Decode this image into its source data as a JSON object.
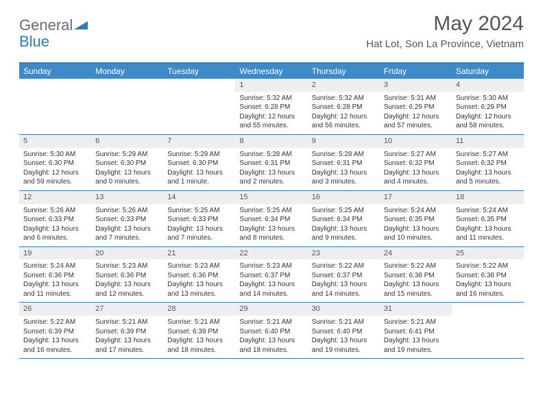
{
  "logo": {
    "text1": "General",
    "text2": "Blue",
    "accent": "#2b7bbd"
  },
  "title": "May 2024",
  "location": "Hat Lot, Son La Province, Vietnam",
  "colors": {
    "header_bar": "#3e8ac9",
    "border": "#2b7bbd",
    "daynum_bg": "#eeeeee",
    "text": "#333333"
  },
  "weekdays": [
    "Sunday",
    "Monday",
    "Tuesday",
    "Wednesday",
    "Thursday",
    "Friday",
    "Saturday"
  ],
  "weeks": [
    [
      {
        "empty": true
      },
      {
        "empty": true
      },
      {
        "empty": true
      },
      {
        "day": "1",
        "sunrise": "Sunrise: 5:32 AM",
        "sunset": "Sunset: 6:28 PM",
        "daylight": "Daylight: 12 hours and 55 minutes."
      },
      {
        "day": "2",
        "sunrise": "Sunrise: 5:32 AM",
        "sunset": "Sunset: 6:28 PM",
        "daylight": "Daylight: 12 hours and 56 minutes."
      },
      {
        "day": "3",
        "sunrise": "Sunrise: 5:31 AM",
        "sunset": "Sunset: 6:29 PM",
        "daylight": "Daylight: 12 hours and 57 minutes."
      },
      {
        "day": "4",
        "sunrise": "Sunrise: 5:30 AM",
        "sunset": "Sunset: 6:29 PM",
        "daylight": "Daylight: 12 hours and 58 minutes."
      }
    ],
    [
      {
        "day": "5",
        "sunrise": "Sunrise: 5:30 AM",
        "sunset": "Sunset: 6:30 PM",
        "daylight": "Daylight: 12 hours and 59 minutes."
      },
      {
        "day": "6",
        "sunrise": "Sunrise: 5:29 AM",
        "sunset": "Sunset: 6:30 PM",
        "daylight": "Daylight: 13 hours and 0 minutes."
      },
      {
        "day": "7",
        "sunrise": "Sunrise: 5:29 AM",
        "sunset": "Sunset: 6:30 PM",
        "daylight": "Daylight: 13 hours and 1 minute."
      },
      {
        "day": "8",
        "sunrise": "Sunrise: 5:28 AM",
        "sunset": "Sunset: 6:31 PM",
        "daylight": "Daylight: 13 hours and 2 minutes."
      },
      {
        "day": "9",
        "sunrise": "Sunrise: 5:28 AM",
        "sunset": "Sunset: 6:31 PM",
        "daylight": "Daylight: 13 hours and 3 minutes."
      },
      {
        "day": "10",
        "sunrise": "Sunrise: 5:27 AM",
        "sunset": "Sunset: 6:32 PM",
        "daylight": "Daylight: 13 hours and 4 minutes."
      },
      {
        "day": "11",
        "sunrise": "Sunrise: 5:27 AM",
        "sunset": "Sunset: 6:32 PM",
        "daylight": "Daylight: 13 hours and 5 minutes."
      }
    ],
    [
      {
        "day": "12",
        "sunrise": "Sunrise: 5:26 AM",
        "sunset": "Sunset: 6:33 PM",
        "daylight": "Daylight: 13 hours and 6 minutes."
      },
      {
        "day": "13",
        "sunrise": "Sunrise: 5:26 AM",
        "sunset": "Sunset: 6:33 PM",
        "daylight": "Daylight: 13 hours and 7 minutes."
      },
      {
        "day": "14",
        "sunrise": "Sunrise: 5:25 AM",
        "sunset": "Sunset: 6:33 PM",
        "daylight": "Daylight: 13 hours and 7 minutes."
      },
      {
        "day": "15",
        "sunrise": "Sunrise: 5:25 AM",
        "sunset": "Sunset: 6:34 PM",
        "daylight": "Daylight: 13 hours and 8 minutes."
      },
      {
        "day": "16",
        "sunrise": "Sunrise: 5:25 AM",
        "sunset": "Sunset: 6:34 PM",
        "daylight": "Daylight: 13 hours and 9 minutes."
      },
      {
        "day": "17",
        "sunrise": "Sunrise: 5:24 AM",
        "sunset": "Sunset: 6:35 PM",
        "daylight": "Daylight: 13 hours and 10 minutes."
      },
      {
        "day": "18",
        "sunrise": "Sunrise: 5:24 AM",
        "sunset": "Sunset: 6:35 PM",
        "daylight": "Daylight: 13 hours and 11 minutes."
      }
    ],
    [
      {
        "day": "19",
        "sunrise": "Sunrise: 5:24 AM",
        "sunset": "Sunset: 6:36 PM",
        "daylight": "Daylight: 13 hours and 11 minutes."
      },
      {
        "day": "20",
        "sunrise": "Sunrise: 5:23 AM",
        "sunset": "Sunset: 6:36 PM",
        "daylight": "Daylight: 13 hours and 12 minutes."
      },
      {
        "day": "21",
        "sunrise": "Sunrise: 5:23 AM",
        "sunset": "Sunset: 6:36 PM",
        "daylight": "Daylight: 13 hours and 13 minutes."
      },
      {
        "day": "22",
        "sunrise": "Sunrise: 5:23 AM",
        "sunset": "Sunset: 6:37 PM",
        "daylight": "Daylight: 13 hours and 14 minutes."
      },
      {
        "day": "23",
        "sunrise": "Sunrise: 5:22 AM",
        "sunset": "Sunset: 6:37 PM",
        "daylight": "Daylight: 13 hours and 14 minutes."
      },
      {
        "day": "24",
        "sunrise": "Sunrise: 5:22 AM",
        "sunset": "Sunset: 6:38 PM",
        "daylight": "Daylight: 13 hours and 15 minutes."
      },
      {
        "day": "25",
        "sunrise": "Sunrise: 5:22 AM",
        "sunset": "Sunset: 6:38 PM",
        "daylight": "Daylight: 13 hours and 16 minutes."
      }
    ],
    [
      {
        "day": "26",
        "sunrise": "Sunrise: 5:22 AM",
        "sunset": "Sunset: 6:39 PM",
        "daylight": "Daylight: 13 hours and 16 minutes."
      },
      {
        "day": "27",
        "sunrise": "Sunrise: 5:21 AM",
        "sunset": "Sunset: 6:39 PM",
        "daylight": "Daylight: 13 hours and 17 minutes."
      },
      {
        "day": "28",
        "sunrise": "Sunrise: 5:21 AM",
        "sunset": "Sunset: 6:39 PM",
        "daylight": "Daylight: 13 hours and 18 minutes."
      },
      {
        "day": "29",
        "sunrise": "Sunrise: 5:21 AM",
        "sunset": "Sunset: 6:40 PM",
        "daylight": "Daylight: 13 hours and 18 minutes."
      },
      {
        "day": "30",
        "sunrise": "Sunrise: 5:21 AM",
        "sunset": "Sunset: 6:40 PM",
        "daylight": "Daylight: 13 hours and 19 minutes."
      },
      {
        "day": "31",
        "sunrise": "Sunrise: 5:21 AM",
        "sunset": "Sunset: 6:41 PM",
        "daylight": "Daylight: 13 hours and 19 minutes."
      },
      {
        "empty": true
      }
    ]
  ]
}
